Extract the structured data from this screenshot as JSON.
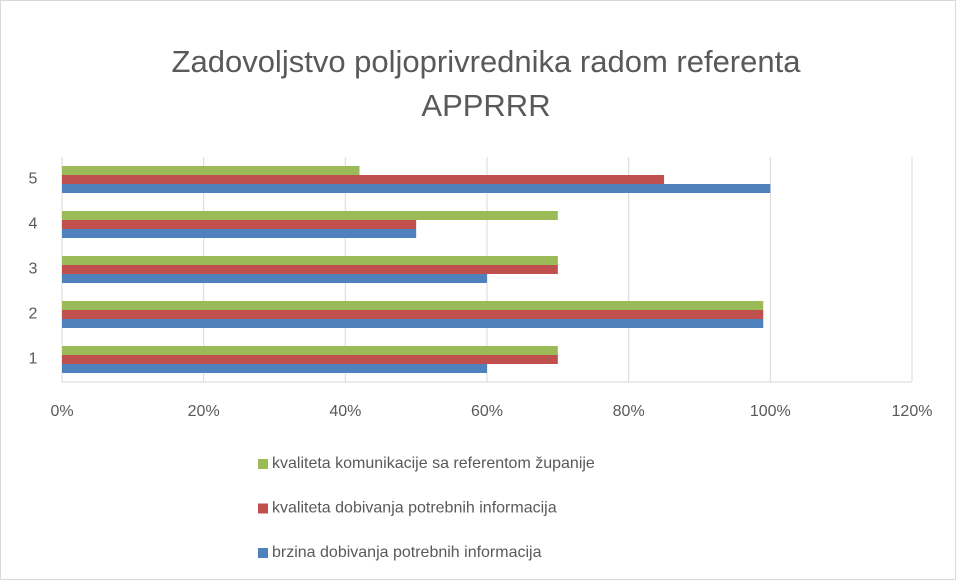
{
  "chart_data": {
    "type": "bar",
    "orientation": "horizontal",
    "title": "Zadovoljstvo poljoprivrednika radom referenta APPRRR",
    "categories": [
      "1",
      "2",
      "3",
      "4",
      "5"
    ],
    "series": [
      {
        "name": "brzina dobivanja potrebnih informacija",
        "color": "#4f81bd",
        "values": [
          60,
          99,
          60,
          50,
          100
        ]
      },
      {
        "name": "kvaliteta dobivanja potrebnih informacija",
        "color": "#c0504d",
        "values": [
          70,
          99,
          70,
          50,
          85
        ]
      },
      {
        "name": "kvaliteta komunikacije sa referentom županije",
        "color": "#9bbb59",
        "values": [
          70,
          99,
          70,
          70,
          42
        ]
      }
    ],
    "xlim": [
      0,
      120
    ],
    "xticks": [
      {
        "value": 0,
        "label": "0%"
      },
      {
        "value": 20,
        "label": "20%"
      },
      {
        "value": 40,
        "label": "40%"
      },
      {
        "value": 60,
        "label": "60%"
      },
      {
        "value": 80,
        "label": "80%"
      },
      {
        "value": 100,
        "label": "100%"
      },
      {
        "value": 120,
        "label": "120%"
      }
    ],
    "grid": true,
    "legend": "bottom"
  }
}
